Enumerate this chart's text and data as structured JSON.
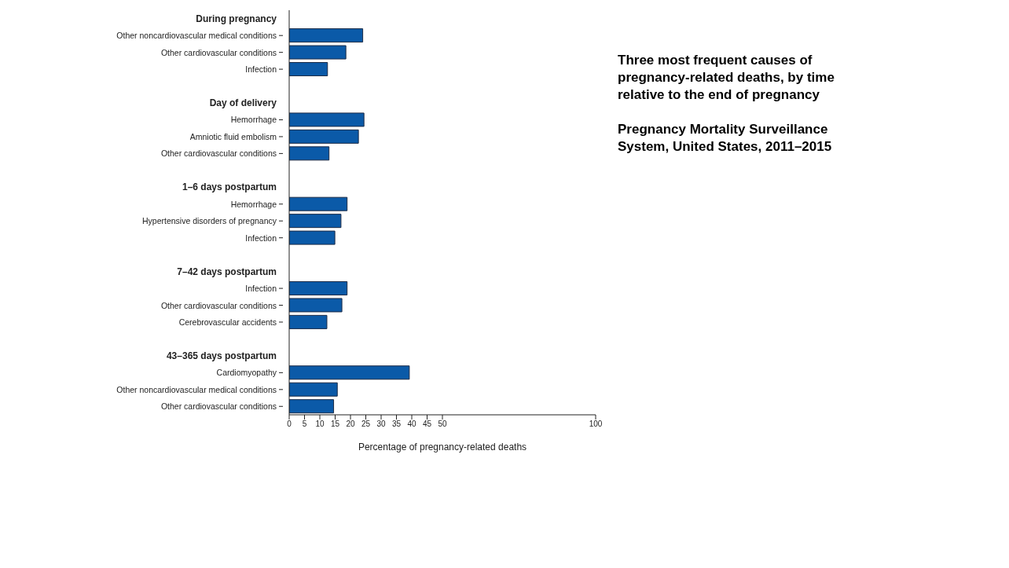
{
  "chart_data": {
    "type": "bar",
    "orientation": "horizontal",
    "title": "Three most frequent causes of pregnancy-related deaths, by time relative to the end of pregnancy",
    "subtitle": "Pregnancy Mortality Surveillance System, United States, 2011–2015",
    "xlabel": "Percentage of pregnancy-related deaths",
    "categories": [
      "During pregnancy",
      "Other noncardiovascular medical conditions",
      "Other cardiovascular conditions",
      "Infection",
      null,
      "Day of delivery",
      "Hemorrhage",
      "Amniotic fluid embolism",
      "Other cardiovascular conditions",
      null,
      "1–6 days postpartum",
      "Hemorrhage",
      "Hypertensive disorders of pregnancy",
      "Infection",
      null,
      "7–42 days postpartum",
      "Infection",
      "Other cardiovascular conditions",
      "Cerebrovascular accidents",
      null,
      "43–365 days postpartum",
      "Cardiomyopathy",
      "Other noncardiovascular medical conditions",
      "Other cardiovascular conditions"
    ],
    "values": [
      null,
      24.0,
      18.5,
      12.5,
      null,
      null,
      24.4,
      22.6,
      13.0,
      null,
      null,
      18.9,
      16.9,
      14.9,
      null,
      null,
      18.9,
      17.2,
      12.3,
      null,
      null,
      39.2,
      15.7,
      14.5
    ],
    "color": "#0b5aa8",
    "xlim": [
      0,
      100
    ],
    "xticks": [
      0,
      5,
      10,
      15,
      20,
      25,
      30,
      35,
      40,
      45,
      50,
      100
    ],
    "grid": false,
    "legend": false
  }
}
